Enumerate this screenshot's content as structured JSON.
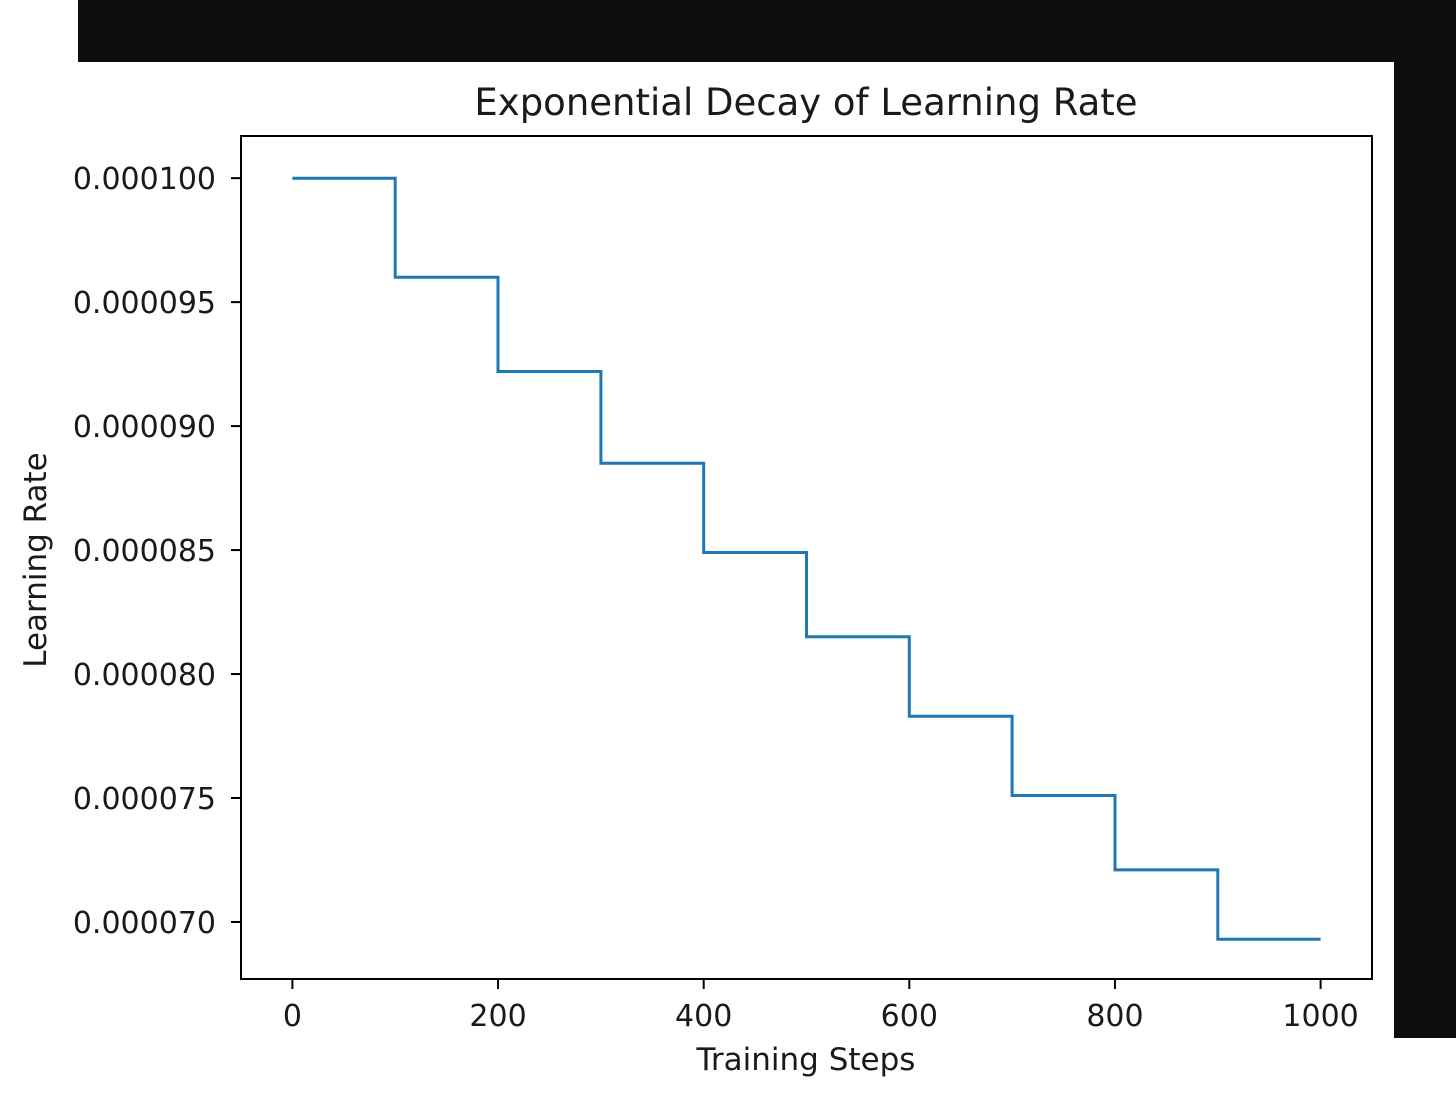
{
  "colors": {
    "background": "#ffffff",
    "frame": "#0d0d0d",
    "series": "#1f77b4",
    "axis": "#000000"
  },
  "chart_data": {
    "type": "line",
    "style": "step",
    "title": "Exponential Decay of Learning Rate",
    "xlabel": "Training Steps",
    "ylabel": "Learning Rate",
    "xlim": [
      -50,
      1050
    ],
    "ylim": [
      6.77e-05,
      0.0001017
    ],
    "x_ticks": [
      0,
      200,
      400,
      600,
      800,
      1000
    ],
    "x_tick_labels": [
      "0",
      "200",
      "400",
      "600",
      "800",
      "1000"
    ],
    "y_ticks": [
      7e-05,
      7.5e-05,
      8e-05,
      8.5e-05,
      9e-05,
      9.5e-05,
      0.0001
    ],
    "y_tick_labels": [
      "0.000070",
      "0.000075",
      "0.000080",
      "0.000085",
      "0.000090",
      "0.000095",
      "0.000100"
    ],
    "grid": false,
    "legend": "none",
    "series": [
      {
        "x": [
          0,
          100,
          100,
          200,
          200,
          300,
          300,
          400,
          400,
          500,
          500,
          600,
          600,
          700,
          700,
          800,
          800,
          900,
          900,
          1000
        ],
        "y": [
          0.0001,
          0.0001,
          9.6e-05,
          9.6e-05,
          9.22e-05,
          9.22e-05,
          8.85e-05,
          8.85e-05,
          8.49e-05,
          8.49e-05,
          8.15e-05,
          8.15e-05,
          7.83e-05,
          7.83e-05,
          7.51e-05,
          7.51e-05,
          7.21e-05,
          7.21e-05,
          6.93e-05,
          6.93e-05
        ]
      }
    ]
  }
}
